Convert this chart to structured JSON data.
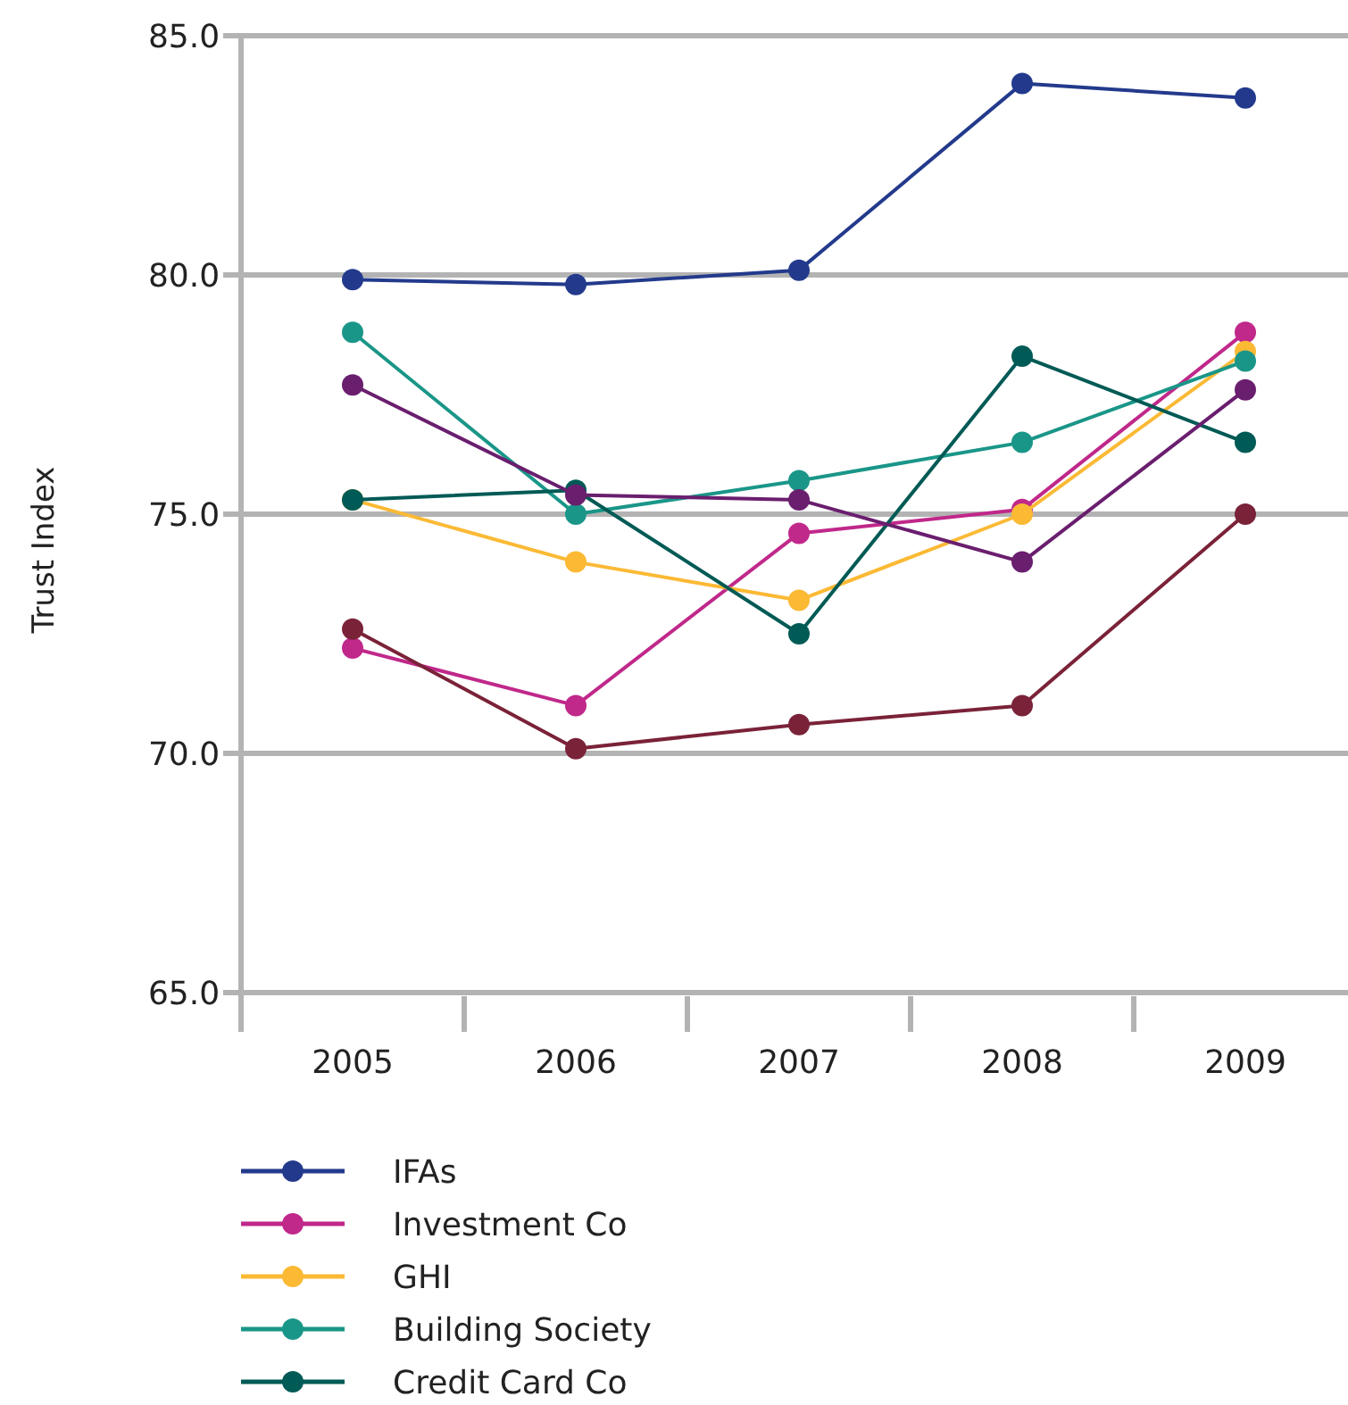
{
  "chart_data": {
    "type": "line",
    "ylabel": "Trust Index",
    "categories": [
      "2005",
      "2006",
      "2007",
      "2008",
      "2009"
    ],
    "ylim": [
      65,
      85
    ],
    "yticks": [
      {
        "value": 65,
        "label": "65.0"
      },
      {
        "value": 70,
        "label": "70.0"
      },
      {
        "value": 75,
        "label": "75.0"
      },
      {
        "value": 80,
        "label": "80.0"
      },
      {
        "value": 85,
        "label": "85.0"
      }
    ],
    "grid": "y",
    "legend": "bottom",
    "marker": "circle",
    "line_style": "solid",
    "series": [
      {
        "name": "IFAs",
        "color": "#233a8c",
        "values": [
          79.9,
          79.8,
          80.1,
          84.0,
          83.7
        ]
      },
      {
        "name": "Investment Co",
        "color": "#c0288a",
        "values": [
          72.2,
          71.0,
          74.6,
          75.1,
          78.8
        ]
      },
      {
        "name": "GHI",
        "color": "#fbb934",
        "values": [
          75.3,
          74.0,
          73.2,
          75.0,
          78.4
        ]
      },
      {
        "name": "Building Society",
        "color": "#1a9688",
        "values": [
          78.8,
          75.0,
          75.7,
          76.5,
          78.2
        ]
      },
      {
        "name": "Credit Card Co",
        "color": "#005a55",
        "values": [
          75.3,
          75.5,
          72.5,
          78.3,
          76.5
        ]
      },
      {
        "color": "#6a1e6e",
        "values": [
          77.7,
          75.4,
          75.3,
          74.0,
          77.6
        ]
      },
      {
        "color": "#7a2238",
        "values": [
          72.6,
          70.1,
          70.6,
          71.0,
          75.0
        ]
      }
    ]
  }
}
